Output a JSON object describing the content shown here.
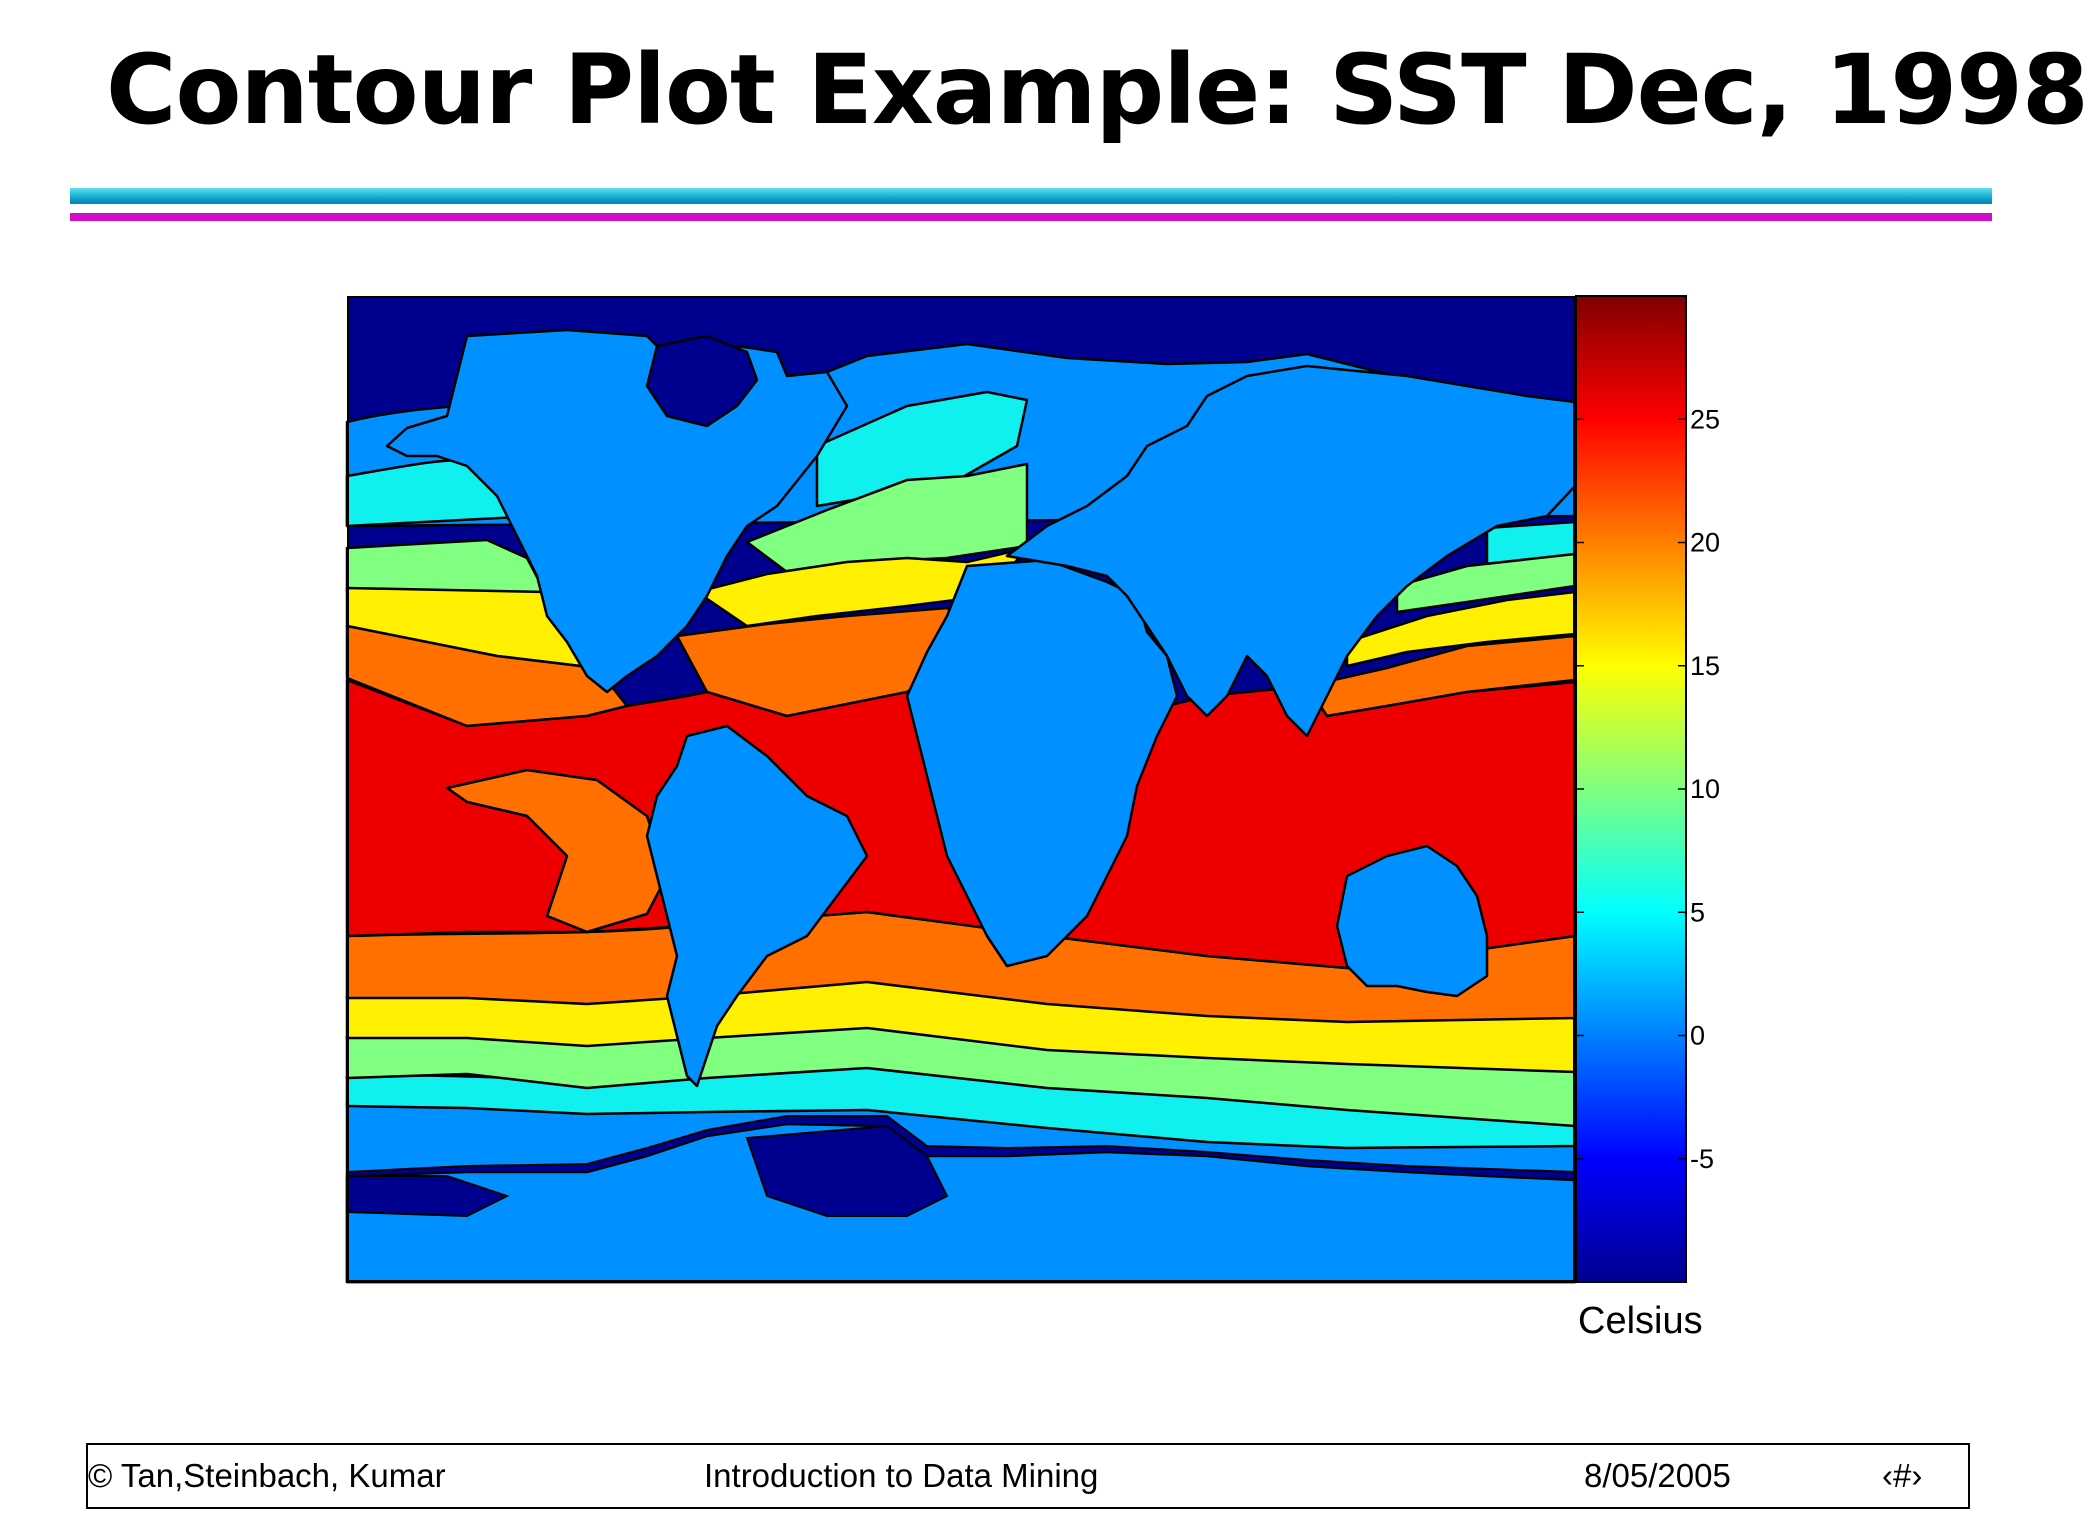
{
  "slide": {
    "title": "Contour Plot Example: SST Dec, 1998"
  },
  "footer": {
    "authors": "© Tan,Steinbach, Kumar",
    "course": "Introduction to Data Mining",
    "date": "8/05/2005",
    "page": "‹#›"
  },
  "chart_data": {
    "type": "heatmap",
    "subtype": "filled-contour-world-map",
    "title": "",
    "xlabel": "",
    "ylabel": "",
    "x_range": [
      -180,
      180
    ],
    "y_range": [
      -90,
      90
    ],
    "land_color": "#0090ff",
    "colorbar": {
      "label": "Celsius",
      "range": [
        -10,
        30
      ],
      "ticks": [
        -5,
        0,
        5,
        10,
        15,
        20,
        25
      ],
      "colormap": "jet"
    },
    "contour_bands": [
      {
        "from": -10,
        "to": 0,
        "color": "#00008f"
      },
      {
        "from": 0,
        "to": 5,
        "color": "#0090ff"
      },
      {
        "from": 5,
        "to": 10,
        "color": "#10f0ef"
      },
      {
        "from": 10,
        "to": 15,
        "color": "#80ff80"
      },
      {
        "from": 15,
        "to": 20,
        "color": "#ffef00"
      },
      {
        "from": 20,
        "to": 25,
        "color": "#ff7000"
      },
      {
        "from": 25,
        "to": 30,
        "color": "#ee0000"
      }
    ]
  }
}
